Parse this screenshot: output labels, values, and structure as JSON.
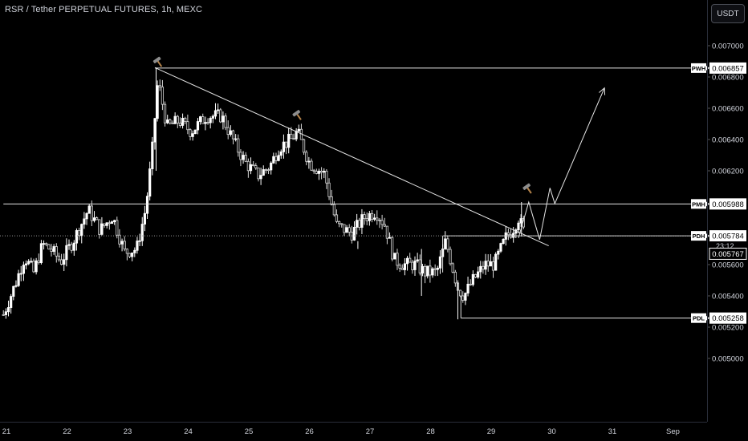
{
  "header": {
    "title": "RSR / Tether PERPETUAL FUTURES, 1h, MEXC",
    "currency_button": "USDT"
  },
  "colors": {
    "background": "#000000",
    "bull": "#ffffff",
    "bear": "#d7d7d7",
    "line": "#e6e6e6",
    "text": "#d1d4dc",
    "grid_axis": "#2a2e39",
    "hammer_emoji": "#c8952f"
  },
  "chart_data": {
    "type": "candlestick",
    "title": "RSR / Tether PERPETUAL FUTURES, 1h, MEXC",
    "y_axis": {
      "ticks": [
        "0.007000",
        "0.006800",
        "0.006600",
        "0.006400",
        "0.006200",
        "0.005600",
        "0.005400",
        "0.005200",
        "0.005000"
      ],
      "tick_values": [
        0.007,
        0.0068,
        0.0066,
        0.0064,
        0.0062,
        0.0056,
        0.0054,
        0.0052,
        0.005
      ],
      "range": [
        0.00486,
        0.00712
      ]
    },
    "x_axis": {
      "ticks": [
        "21",
        "22",
        "23",
        "24",
        "25",
        "26",
        "27",
        "28",
        "29",
        "30",
        "31",
        "Sep"
      ],
      "tick_days": [
        21,
        22,
        23,
        24,
        25,
        26,
        27,
        28,
        29,
        30,
        31,
        32
      ],
      "range_days": [
        20.95,
        32.63
      ]
    },
    "levels": [
      {
        "label": "PWH",
        "value": 0.006857,
        "value_text": "0.006857",
        "from_day": 23.45
      },
      {
        "label": "PMH",
        "value": 0.005988,
        "value_text": "0.005988",
        "from_day": 20.95
      },
      {
        "label": "PDH",
        "value": 0.005784,
        "value_text": "0.005784",
        "from_day": 28.2
      },
      {
        "label": "PDL",
        "value": 0.005258,
        "value_text": "0.005258",
        "from_day": 28.5
      }
    ],
    "current_price": {
      "value": 0.005784,
      "value_text": "0.005784",
      "countdown": "23:12"
    },
    "extra_price_label": {
      "value": 0.005767,
      "value_text": "0.005767"
    },
    "trendline": {
      "from": {
        "day": 23.45,
        "value": 0.00686
      },
      "to": {
        "day": 29.95,
        "value": 0.00572
      }
    },
    "projection_path": [
      {
        "day": 29.45,
        "value": 0.00577
      },
      {
        "day": 29.62,
        "value": 0.006
      },
      {
        "day": 29.8,
        "value": 0.00576
      },
      {
        "day": 29.97,
        "value": 0.00609
      },
      {
        "day": 30.05,
        "value": 0.00599
      },
      {
        "day": 30.87,
        "value": 0.00673
      }
    ],
    "hammer_markers": [
      {
        "day": 23.5,
        "value": 0.0069
      },
      {
        "day": 25.8,
        "value": 0.00656
      },
      {
        "day": 29.6,
        "value": 0.00609
      }
    ],
    "price_anchors": [
      {
        "day": 20.95,
        "value": 0.00528
      },
      {
        "day": 21.15,
        "value": 0.00548
      },
      {
        "day": 21.3,
        "value": 0.00565
      },
      {
        "day": 21.45,
        "value": 0.00555
      },
      {
        "day": 21.6,
        "value": 0.00573
      },
      {
        "day": 21.75,
        "value": 0.00569
      },
      {
        "day": 21.9,
        "value": 0.00562
      },
      {
        "day": 22.1,
        "value": 0.00575
      },
      {
        "day": 22.35,
        "value": 0.00595
      },
      {
        "day": 22.55,
        "value": 0.00582
      },
      {
        "day": 22.75,
        "value": 0.00591
      },
      {
        "day": 22.95,
        "value": 0.00568
      },
      {
        "day": 23.15,
        "value": 0.0057
      },
      {
        "day": 23.3,
        "value": 0.00596
      },
      {
        "day": 23.4,
        "value": 0.0063
      },
      {
        "day": 23.5,
        "value": 0.00678
      },
      {
        "day": 23.65,
        "value": 0.00648
      },
      {
        "day": 23.85,
        "value": 0.00652
      },
      {
        "day": 24.05,
        "value": 0.00645
      },
      {
        "day": 24.3,
        "value": 0.00655
      },
      {
        "day": 24.55,
        "value": 0.00655
      },
      {
        "day": 24.8,
        "value": 0.00635
      },
      {
        "day": 24.95,
        "value": 0.00625
      },
      {
        "day": 25.15,
        "value": 0.00617
      },
      {
        "day": 25.35,
        "value": 0.00623
      },
      {
        "day": 25.5,
        "value": 0.00635
      },
      {
        "day": 25.7,
        "value": 0.0064
      },
      {
        "day": 25.8,
        "value": 0.00645
      },
      {
        "day": 26.0,
        "value": 0.00625
      },
      {
        "day": 26.25,
        "value": 0.00618
      },
      {
        "day": 26.45,
        "value": 0.00585
      },
      {
        "day": 26.7,
        "value": 0.0058
      },
      {
        "day": 26.9,
        "value": 0.0059
      },
      {
        "day": 27.1,
        "value": 0.00594
      },
      {
        "day": 27.25,
        "value": 0.00585
      },
      {
        "day": 27.4,
        "value": 0.00563
      },
      {
        "day": 27.55,
        "value": 0.0056
      },
      {
        "day": 27.75,
        "value": 0.0056
      },
      {
        "day": 27.9,
        "value": 0.00555
      },
      {
        "day": 28.1,
        "value": 0.00555
      },
      {
        "day": 28.25,
        "value": 0.00575
      },
      {
        "day": 28.35,
        "value": 0.0056
      },
      {
        "day": 28.45,
        "value": 0.00545
      },
      {
        "day": 28.55,
        "value": 0.0054
      },
      {
        "day": 28.7,
        "value": 0.0055
      },
      {
        "day": 28.9,
        "value": 0.0056
      },
      {
        "day": 29.05,
        "value": 0.0056
      },
      {
        "day": 29.25,
        "value": 0.00578
      },
      {
        "day": 29.35,
        "value": 0.00582
      },
      {
        "day": 29.45,
        "value": 0.0059
      },
      {
        "day": 29.55,
        "value": 0.0058
      }
    ],
    "grid": false
  }
}
